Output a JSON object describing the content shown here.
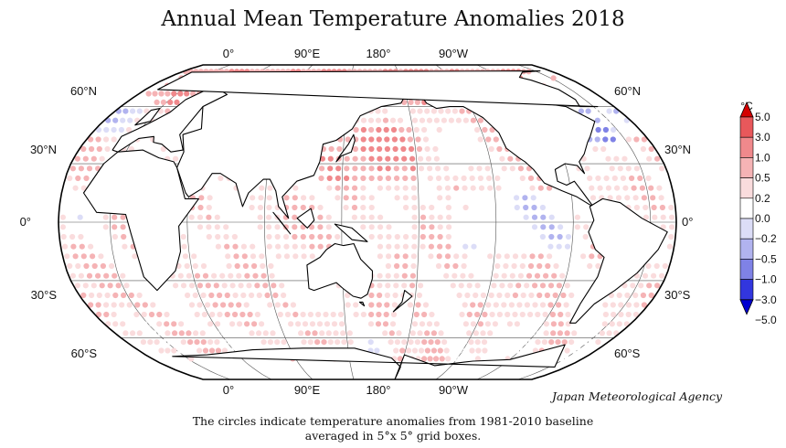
{
  "title": "Annual Mean Temperature Anomalies 2018",
  "agency": "Japan Meteorological Agency",
  "caption": {
    "line1": "The circles indicate temperature anomalies from 1981-2010 baseline",
    "line2": "averaged in 5°x 5° grid boxes."
  },
  "map": {
    "projection": "Robinson, Pacific-centered",
    "grid_cell_degrees": 5,
    "baseline": "1981-2010",
    "longitude_labels_top": [
      "0°",
      "90°E",
      "180°",
      "90°W"
    ],
    "longitude_labels_bottom": [
      "0°",
      "90°E",
      "180°",
      "90°W"
    ],
    "latitude_labels_left": [
      "60°N",
      "30°N",
      "0°",
      "30°S",
      "60°S"
    ],
    "latitude_labels_right": [
      "60°N",
      "30°N",
      "0°",
      "30°S",
      "60°S"
    ]
  },
  "legend": {
    "unit": "°C",
    "labels": [
      "5.0",
      "3.0",
      "1.0",
      "0.5",
      "0.2",
      "0.0",
      "−0.2",
      "−0.5",
      "−1.0",
      "−3.0",
      "−5.0"
    ],
    "colors": [
      "#d40000",
      "#e8585b",
      "#f0898c",
      "#f5b3b5",
      "#fadcdd",
      "#ffffff",
      "#dcddf7",
      "#b1b3ef",
      "#7f82e6",
      "#3236de",
      "#0000d0"
    ]
  }
}
